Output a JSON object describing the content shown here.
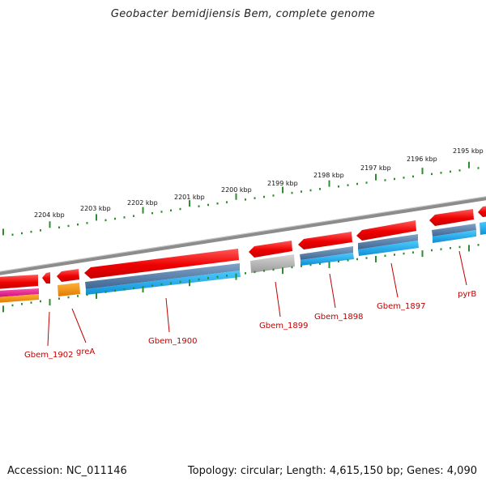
{
  "title": "Geobacter bemidjiensis Bem, complete genome",
  "footer": {
    "accession": "Accession: NC_011146",
    "stats": "Topology: circular; Length: 4,615,150 bp; Genes: 4,090"
  },
  "colors": {
    "gene_red": "#ff1a1a",
    "cds_blue": "#1ea0e8",
    "cds_steel": "#4f78a8",
    "misc_gray": "#a0a0a0",
    "orange": "#f08a00",
    "magenta": "#e0208a",
    "tick_green": "#2e8b2e",
    "backbone_gray": "#8c8c8c",
    "label_red": "#c00000"
  },
  "ticks": [
    {
      "label": "2204 kbp"
    },
    {
      "label": "2203 kbp"
    },
    {
      "label": "2202 kbp"
    },
    {
      "label": "2201 kbp"
    },
    {
      "label": "2200 kbp"
    },
    {
      "label": "2199 kbp"
    },
    {
      "label": "2198 kbp"
    },
    {
      "label": "2197 kbp"
    },
    {
      "label": "2196 kbp"
    },
    {
      "label": "2195 kbp"
    }
  ],
  "genes": [
    {
      "name": "Gbem_1902"
    },
    {
      "name": "greA"
    },
    {
      "name": "Gbem_1900"
    },
    {
      "name": "Gbem_1899"
    },
    {
      "name": "Gbem_1898"
    },
    {
      "name": "Gbem_1897"
    },
    {
      "name": "pyrB"
    }
  ]
}
